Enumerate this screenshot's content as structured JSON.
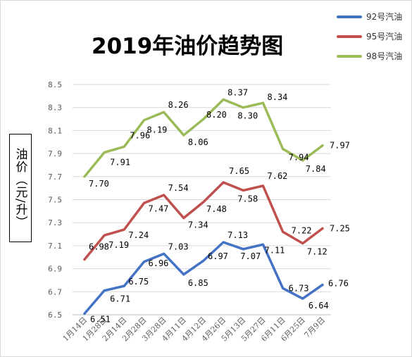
{
  "chart_data": {
    "type": "line",
    "title": "2019年油价趋势图",
    "ylabel": "油价（元/升）",
    "xlabel": "",
    "categories": [
      "1月14日",
      "1月28日",
      "2月14日",
      "2月28日",
      "3月28日",
      "4月11日",
      "4月12日",
      "4月26日",
      "5月13日",
      "5月27日",
      "6月11日",
      "6月25日",
      "7月9日"
    ],
    "ylim": [
      6.5,
      8.5
    ],
    "yticks": [
      "6.5",
      "6.7",
      "6.9",
      "7.1",
      "7.3",
      "7.5",
      "7.7",
      "7.9",
      "8.1",
      "8.3",
      "8.5"
    ],
    "grid": true,
    "legend_position": "top-right",
    "series": [
      {
        "name": "92号汽油",
        "color": "#4472C4",
        "values": [
          6.51,
          6.71,
          6.75,
          6.96,
          7.03,
          6.85,
          6.97,
          7.13,
          7.07,
          7.11,
          6.73,
          6.64,
          6.76
        ],
        "labels": [
          "6.51",
          "6.71",
          "6.75",
          "6.96",
          "7.03",
          "6.85",
          "6.97",
          "7.13",
          "7.07",
          "7.11",
          "6.73",
          "6.64",
          "6.76"
        ]
      },
      {
        "name": "95号汽油",
        "color": "#C0504D",
        "values": [
          6.98,
          7.19,
          7.24,
          7.47,
          7.54,
          7.34,
          7.48,
          7.65,
          7.58,
          7.62,
          7.22,
          7.12,
          7.25
        ],
        "labels": [
          "6.98",
          "7.19",
          "7.24",
          "7.47",
          "7.54",
          "7.34",
          "7.48",
          "7.65",
          "7.58",
          "7.62",
          "7.22",
          "7.12",
          "7.25"
        ]
      },
      {
        "name": "98号汽油",
        "color": "#9BBB59",
        "values": [
          7.7,
          7.91,
          7.96,
          8.19,
          8.26,
          8.06,
          8.2,
          8.37,
          8.3,
          8.34,
          7.94,
          7.84,
          7.97
        ],
        "labels": [
          "7.70",
          "7.91",
          "7.96",
          "8.19",
          "8.26",
          "8.06",
          "8.20",
          "8.37",
          "8.30",
          "8.34",
          "7.94",
          "7.84",
          "7.97"
        ]
      }
    ]
  }
}
